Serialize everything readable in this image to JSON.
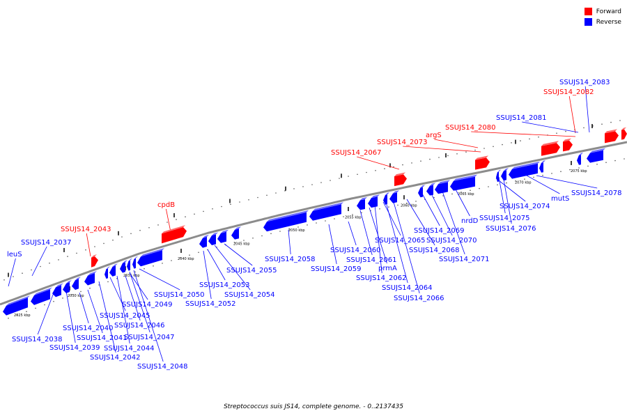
{
  "caption": "Streptococcus suis JS14, complete genome. - 0..2137435",
  "legend": [
    {
      "label": "Forward",
      "color": "#ff0000"
    },
    {
      "label": "Reverse",
      "color": "#0000ff"
    }
  ],
  "colors": {
    "forward": "#ff0000",
    "reverse": "#0000ff",
    "backbone": "#8c8c8c"
  },
  "scale_ticks": [
    "2025 kbp",
    "2030 kbp",
    "2035 kbp",
    "2040 kbp",
    "2045 kbp",
    "2050 kbp",
    "2055 kbp",
    "2060 kbp",
    "2065 kbp",
    "2070 kbp",
    "2075 kbp"
  ],
  "forward_genes": [
    "SSUJS14_2043",
    "cpdB",
    "SSUJS14_2067",
    "SSUJS14_2073",
    "argS",
    "SSUJS14_2080",
    "SSUJS14_2082"
  ],
  "reverse_genes": [
    "leuS",
    "SSUJS14_2037",
    "SSUJS14_2038",
    "SSUJS14_2039",
    "SSUJS14_2040",
    "SSUJS14_2041",
    "SSUJS14_2042",
    "SSUJS14_2044",
    "SSUJS14_2045",
    "SSUJS14_2046",
    "SSUJS14_2047",
    "SSUJS14_2048",
    "SSUJS14_2049",
    "SSUJS14_2050",
    "SSUJS14_2052",
    "SSUJS14_2053",
    "SSUJS14_2054",
    "SSUJS14_2055",
    "SSUJS14_2058",
    "SSUJS14_2059",
    "SSUJS14_2060",
    "SSUJS14_2061",
    "prmA",
    "SSUJS14_2062",
    "SSUJS14_2064",
    "SSUJS14_2065",
    "SSUJS14_2066",
    "SSUJS14_2068",
    "SSUJS14_2069",
    "SSUJS14_2070",
    "SSUJS14_2071",
    "nrdD",
    "SSUJS14_2074",
    "SSUJS14_2075",
    "SSUJS14_2076",
    "mutS",
    "SSUJS14_2078",
    "SSUJS14_2081",
    "SSUJS14_2083"
  ]
}
